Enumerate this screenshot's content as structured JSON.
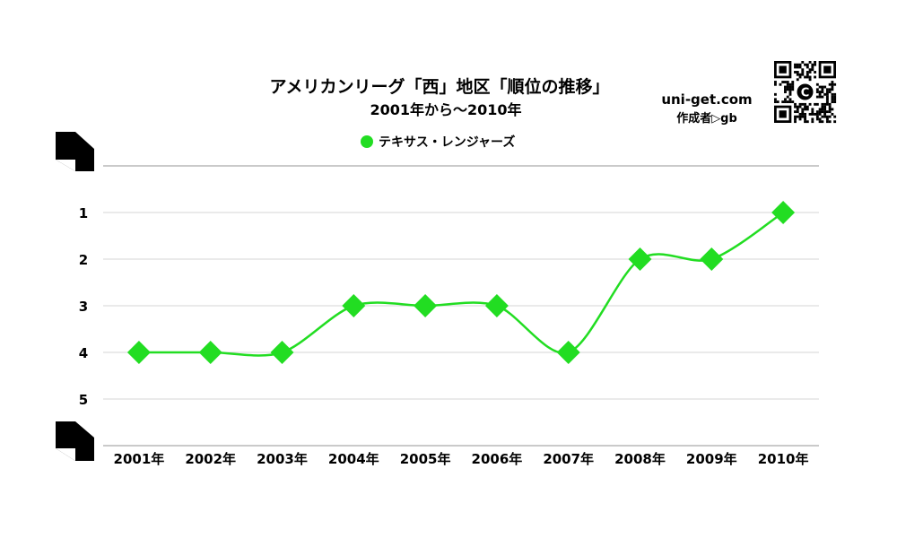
{
  "chart_data": {
    "type": "line",
    "title": "アメリカンリーグ「西」地区「順位の推移」",
    "subtitle": "2001年から～2010年",
    "categories": [
      "2001年",
      "2002年",
      "2003年",
      "2004年",
      "2005年",
      "2006年",
      "2007年",
      "2008年",
      "2009年",
      "2010年"
    ],
    "series": [
      {
        "name": "テキサス・レンジャーズ",
        "color": "#22dd22",
        "marker": "diamond",
        "values": [
          4,
          4,
          4,
          3,
          3,
          3,
          4,
          2,
          2,
          1
        ]
      }
    ],
    "y_ticks": [
      "1",
      "2",
      "3",
      "4",
      "5"
    ],
    "ylim": [
      0,
      6
    ],
    "y_reversed": true,
    "grid": true,
    "legend_position": "top-center"
  },
  "branding": {
    "site": "uni-get.com",
    "author": "作成者▷gb",
    "qr_icon": "qr-code-icon",
    "logo_letter": "C"
  }
}
